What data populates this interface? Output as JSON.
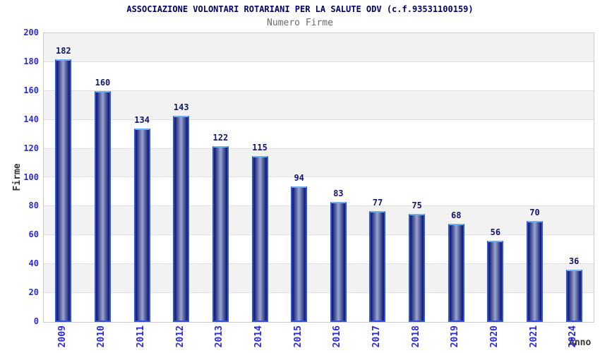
{
  "chart_data": {
    "type": "bar",
    "title": "ASSOCIAZIONE VOLONTARI ROTARIANI PER LA SALUTE ODV (c.f.93531100159)",
    "subtitle": "Numero Firme",
    "xlabel": "Anno",
    "ylabel": "Firme",
    "categories": [
      "2009",
      "2010",
      "2011",
      "2012",
      "2013",
      "2014",
      "2015",
      "2016",
      "2017",
      "2018",
      "2019",
      "2020",
      "2021",
      "2024"
    ],
    "values": [
      182,
      160,
      134,
      143,
      122,
      115,
      94,
      83,
      77,
      75,
      68,
      56,
      70,
      36
    ],
    "ylim": [
      0,
      200
    ],
    "yticks": [
      0,
      20,
      40,
      60,
      80,
      100,
      120,
      140,
      160,
      180,
      200
    ],
    "grid": "horizontal-bands",
    "legend": "none",
    "colors": {
      "title": "#000066",
      "subtitle": "#6b6b6b",
      "tick_label": "#2a2ad4",
      "value_label": "#11166b",
      "axis_title": "#333333",
      "band_gray": "#f2f2f2",
      "band_white": "#ffffff",
      "grid_line": "#e0e0e0",
      "plot_border": "#cccccc",
      "bar_border": "#2b57de",
      "bar_border_top": "#6fb0f0",
      "bar_dark": "#1a2072",
      "bar_mid": "#6d78b2",
      "bar_light": "#9ba5d2"
    }
  }
}
